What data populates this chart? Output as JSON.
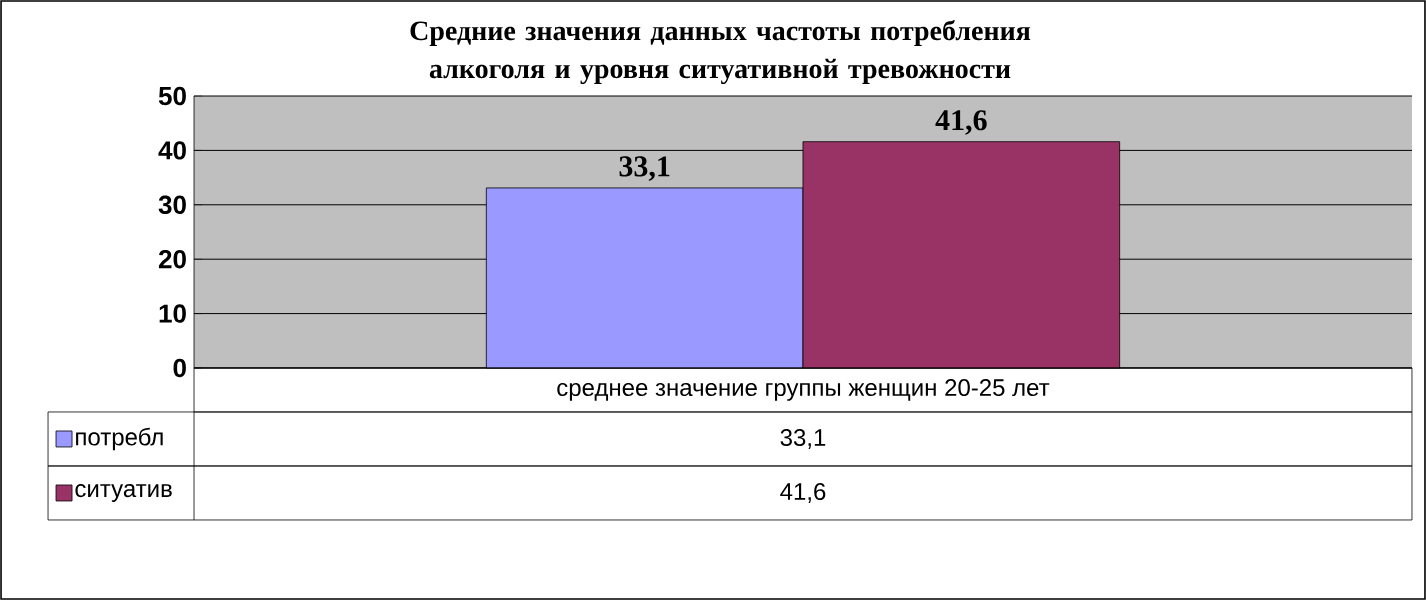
{
  "chart_data": {
    "type": "bar",
    "title": "Средние значения данных частоты потребления алкоголя и уровня ситуативной тревожности",
    "categories": [
      "среднее значение группы женщин 20-25 лет"
    ],
    "series": [
      {
        "name": "потребл",
        "color": "#9999ff",
        "values": [
          33.1
        ],
        "value_labels": [
          "33,1"
        ]
      },
      {
        "name": "ситуатив",
        "color": "#993366",
        "values": [
          41.6
        ],
        "value_labels": [
          "41,6"
        ]
      }
    ],
    "ylim": [
      0,
      50
    ],
    "yticks": [
      0,
      10,
      20,
      30,
      40,
      50
    ],
    "grid": "y",
    "legend": "bottom"
  }
}
